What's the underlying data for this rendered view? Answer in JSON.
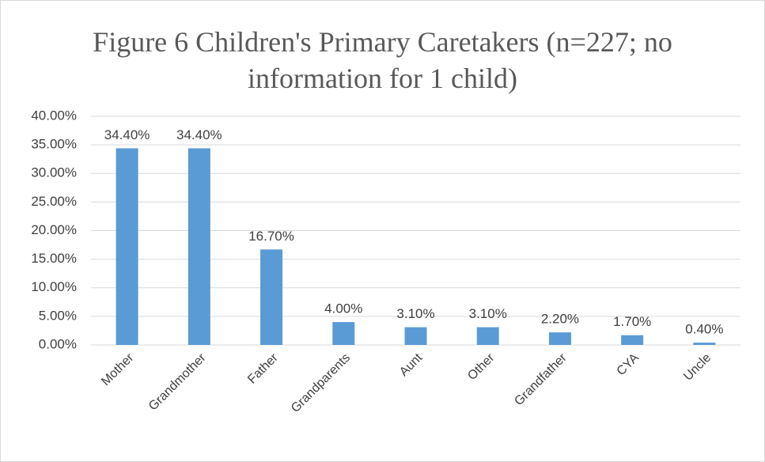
{
  "chart_data": {
    "type": "bar",
    "title": "Figure 6 Children's Primary Caretakers (n=227; no information for 1 child)",
    "categories": [
      "Mother",
      "Grandmother",
      "Father",
      "Grandparents",
      "Aunt",
      "Other",
      "Grandfather",
      "CYA",
      "Uncle"
    ],
    "values": [
      34.4,
      34.4,
      16.7,
      4.0,
      3.1,
      3.1,
      2.2,
      1.7,
      0.4
    ],
    "value_labels": [
      "34.40%",
      "34.40%",
      "16.70%",
      "4.00%",
      "3.10%",
      "3.10%",
      "2.20%",
      "1.70%",
      "0.40%"
    ],
    "color": "#5b9bd5",
    "ylim": [
      0,
      40
    ],
    "yticks": [
      {
        "value": 0,
        "label": "0.00%"
      },
      {
        "value": 5,
        "label": "5.00%"
      },
      {
        "value": 10,
        "label": "10.00%"
      },
      {
        "value": 15,
        "label": "15.00%"
      },
      {
        "value": 20,
        "label": "20.00%"
      },
      {
        "value": 25,
        "label": "25.00%"
      },
      {
        "value": 30,
        "label": "30.00%"
      },
      {
        "value": 35,
        "label": "35.00%"
      },
      {
        "value": 40,
        "label": "40.00%"
      }
    ],
    "grid": true
  }
}
